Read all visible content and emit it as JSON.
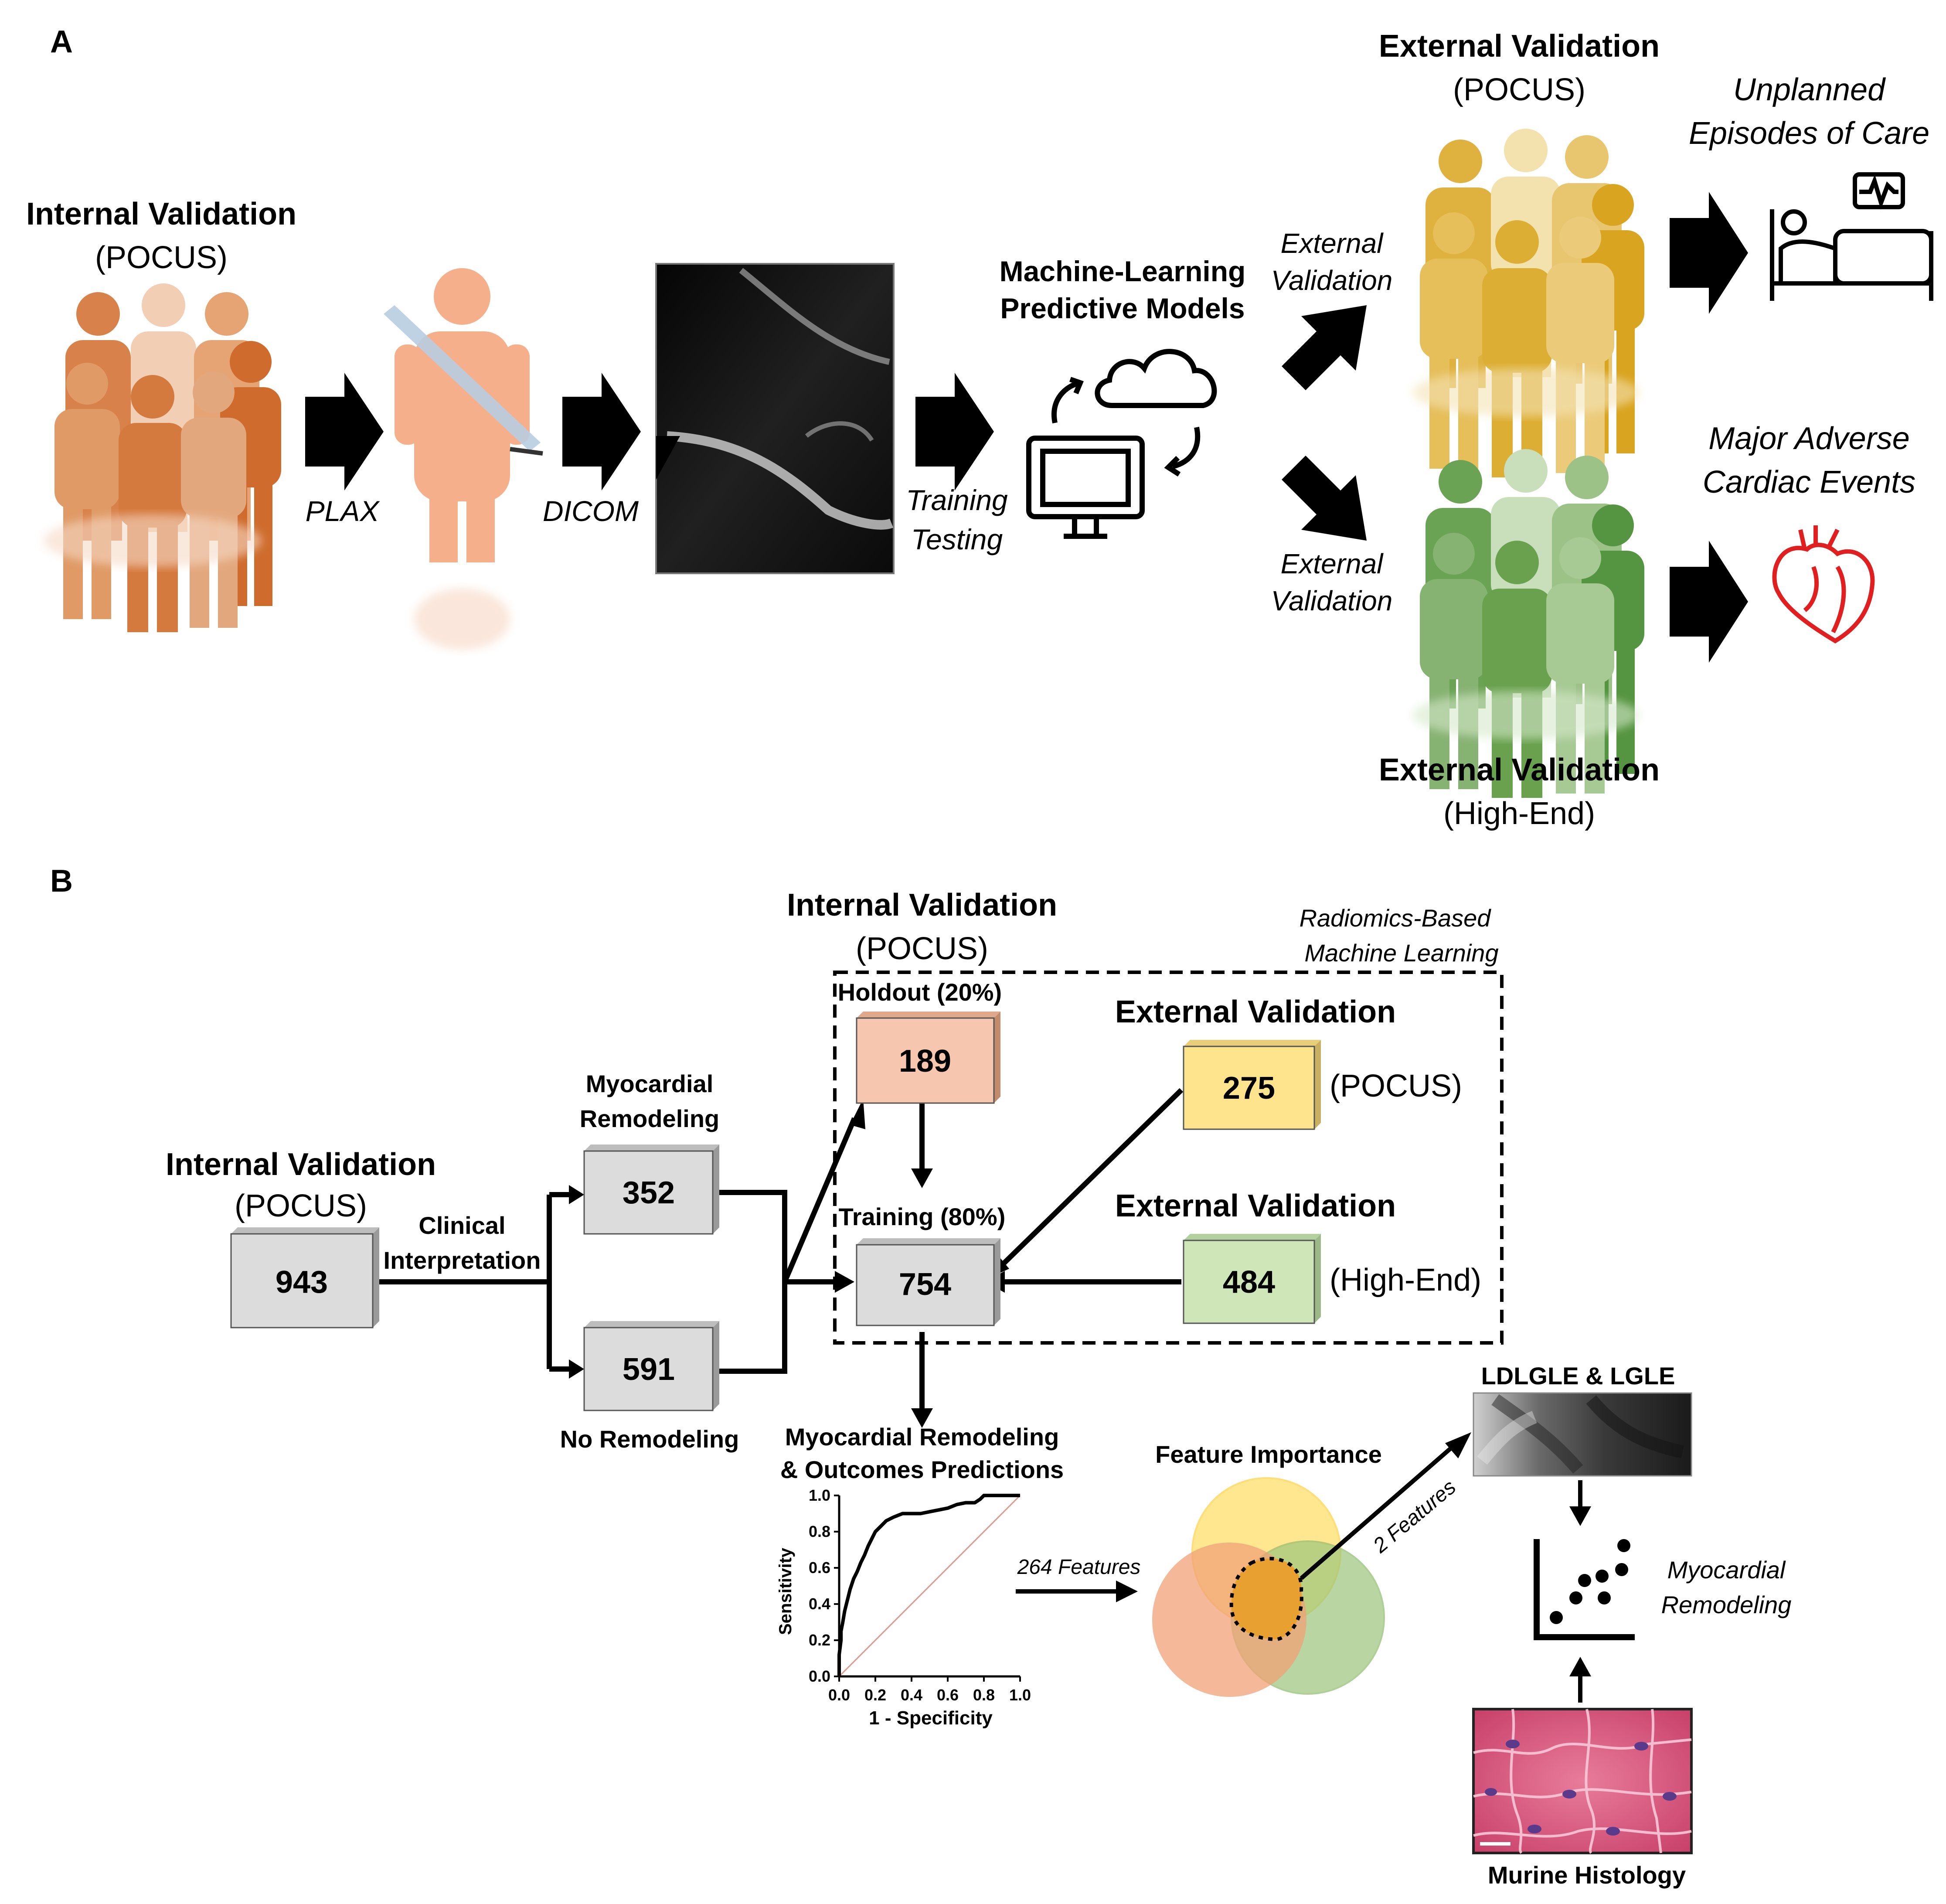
{
  "panel_a": {
    "letter": "A",
    "internal_title": "Internal Validation",
    "internal_sub": "(POCUS)",
    "plax": "PLAX",
    "dicom": "DICOM",
    "training": "Training",
    "testing": "Testing",
    "ml_line1": "Machine-Learning",
    "ml_line2": "Predictive Models",
    "ext_arrow_top_1": "External",
    "ext_arrow_top_2": "Validation",
    "ext_arrow_bot_1": "External",
    "ext_arrow_bot_2": "Validation",
    "ext_pocus_title": "External Validation",
    "ext_pocus_sub": "(POCUS)",
    "ext_high_title": "External Validation",
    "ext_high_sub": "(High-End)",
    "outcome1_line1": "Unplanned",
    "outcome1_line2": "Episodes of Care",
    "outcome2_line1": "Major Adverse",
    "outcome2_line2": "Cardiac Events",
    "colors": {
      "orange": "#d9814a",
      "peach": "#f3b08a",
      "gold": "#e0b441",
      "green": "#6aa353",
      "heart": "#e02020"
    }
  },
  "panel_b": {
    "letter": "B",
    "internal_title": "Internal Validation",
    "internal_sub": "(POCUS)",
    "n_total": "943",
    "clinical_1": "Clinical",
    "clinical_2": "Interpretation",
    "remodel_1": "Myocardial",
    "remodel_2": "Remodeling",
    "n_remodel": "352",
    "n_no_remodel": "591",
    "no_remodel": "No Remodeling",
    "top_internal_title": "Internal Validation",
    "top_internal_sub": "(POCUS)",
    "radiomics_1": "Radiomics-Based",
    "radiomics_2": "Machine Learning",
    "holdout_label": "Holdout (20%)",
    "n_holdout": "189",
    "training_label": "Training (80%)",
    "n_training": "754",
    "ext_title_1": "External Validation",
    "n_ext_pocus": "275",
    "ext_pocus_tag": "(POCUS)",
    "ext_title_2": "External Validation",
    "n_ext_high": "484",
    "ext_high_tag": "(High-End)",
    "pred_1": "Myocardial Remodeling",
    "pred_2": "& Outcomes Predictions",
    "features_264": "264 Features",
    "feature_importance": "Feature Importance",
    "features_2": "2 Features",
    "ldlgle": "LDLGLE & LGLE",
    "myo_1": "Myocardial",
    "myo_2": "Remodeling",
    "histology": "Murine Histology",
    "box_colors": {
      "gray": "#dcdcdc",
      "peach": "#f7c6ae",
      "yellow": "#ffe48e",
      "green": "#cfe6b8"
    }
  },
  "chart_data": {
    "type": "line",
    "xlabel": "1 - Specificity",
    "ylabel": "Sensitivity",
    "xlim": [
      0,
      1
    ],
    "ylim": [
      0,
      1
    ],
    "xticks": [
      "0.0",
      "0.2",
      "0.4",
      "0.6",
      "0.8",
      "1.0"
    ],
    "yticks": [
      "0.0",
      "0.2",
      "0.4",
      "0.6",
      "0.8",
      "1.0"
    ],
    "series": [
      {
        "x": [
          0,
          0,
          0.01,
          0.01,
          0.02,
          0.03,
          0.04,
          0.05,
          0.06,
          0.08,
          0.1,
          0.12,
          0.14,
          0.16,
          0.18,
          0.2,
          0.23,
          0.26,
          0.3,
          0.35,
          0.4,
          0.45,
          0.5,
          0.55,
          0.6,
          0.65,
          0.7,
          0.75,
          0.78,
          0.8,
          0.85,
          0.9,
          1.0
        ],
        "y": [
          0,
          0.12,
          0.2,
          0.25,
          0.3,
          0.36,
          0.4,
          0.44,
          0.48,
          0.54,
          0.58,
          0.63,
          0.67,
          0.72,
          0.76,
          0.8,
          0.83,
          0.86,
          0.88,
          0.9,
          0.9,
          0.9,
          0.91,
          0.92,
          0.93,
          0.95,
          0.96,
          0.96,
          0.98,
          1.0,
          1.0,
          1.0,
          1.0
        ]
      }
    ],
    "reference_line": true
  }
}
